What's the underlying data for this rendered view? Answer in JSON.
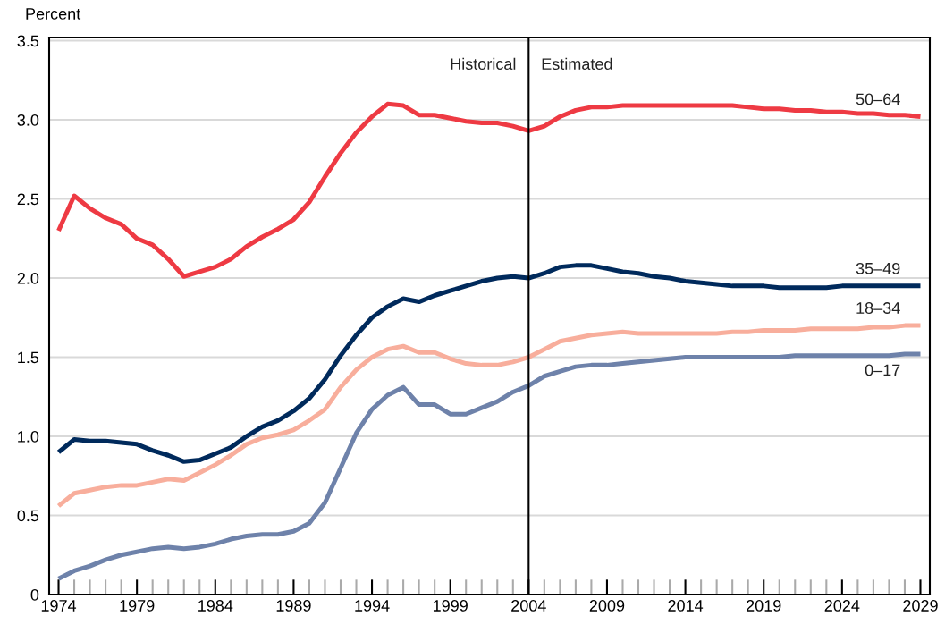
{
  "chart_data": {
    "type": "line",
    "ylabel": "Percent",
    "x": [
      1974,
      1975,
      1976,
      1977,
      1978,
      1979,
      1980,
      1981,
      1982,
      1983,
      1984,
      1985,
      1986,
      1987,
      1988,
      1989,
      1990,
      1991,
      1992,
      1993,
      1994,
      1995,
      1996,
      1997,
      1998,
      1999,
      2000,
      2001,
      2002,
      2003,
      2004,
      2005,
      2006,
      2007,
      2008,
      2009,
      2010,
      2011,
      2012,
      2013,
      2014,
      2015,
      2016,
      2017,
      2018,
      2019,
      2020,
      2021,
      2022,
      2023,
      2024,
      2025,
      2026,
      2027,
      2028,
      2029
    ],
    "series": [
      {
        "name": "50–64",
        "color": "#ee3a43",
        "values": [
          2.3,
          2.52,
          2.44,
          2.38,
          2.34,
          2.25,
          2.21,
          2.12,
          2.01,
          2.04,
          2.07,
          2.12,
          2.2,
          2.26,
          2.31,
          2.37,
          2.48,
          2.64,
          2.79,
          2.92,
          3.02,
          3.1,
          3.09,
          3.03,
          3.03,
          3.01,
          2.99,
          2.98,
          2.98,
          2.96,
          2.93,
          2.96,
          3.02,
          3.06,
          3.08,
          3.08,
          3.09,
          3.09,
          3.09,
          3.09,
          3.09,
          3.09,
          3.09,
          3.09,
          3.08,
          3.07,
          3.07,
          3.06,
          3.06,
          3.05,
          3.05,
          3.04,
          3.04,
          3.03,
          3.03,
          3.02
        ]
      },
      {
        "name": "35–49",
        "color": "#002a5c",
        "values": [
          0.9,
          0.98,
          0.97,
          0.97,
          0.96,
          0.95,
          0.91,
          0.88,
          0.84,
          0.85,
          0.89,
          0.93,
          1.0,
          1.06,
          1.1,
          1.16,
          1.24,
          1.36,
          1.51,
          1.64,
          1.75,
          1.82,
          1.87,
          1.85,
          1.89,
          1.92,
          1.95,
          1.98,
          2.0,
          2.01,
          2.0,
          2.03,
          2.07,
          2.08,
          2.08,
          2.06,
          2.04,
          2.03,
          2.01,
          2.0,
          1.98,
          1.97,
          1.96,
          1.95,
          1.95,
          1.95,
          1.94,
          1.94,
          1.94,
          1.94,
          1.95,
          1.95,
          1.95,
          1.95,
          1.95,
          1.95
        ]
      },
      {
        "name": "18–34",
        "color": "#f8ae9c",
        "values": [
          0.56,
          0.64,
          0.66,
          0.68,
          0.69,
          0.69,
          0.71,
          0.73,
          0.72,
          0.77,
          0.82,
          0.88,
          0.95,
          0.99,
          1.01,
          1.04,
          1.1,
          1.17,
          1.31,
          1.42,
          1.5,
          1.55,
          1.57,
          1.53,
          1.53,
          1.49,
          1.46,
          1.45,
          1.45,
          1.47,
          1.5,
          1.55,
          1.6,
          1.62,
          1.64,
          1.65,
          1.66,
          1.65,
          1.65,
          1.65,
          1.65,
          1.65,
          1.65,
          1.66,
          1.66,
          1.67,
          1.67,
          1.67,
          1.68,
          1.68,
          1.68,
          1.68,
          1.69,
          1.69,
          1.7,
          1.7
        ]
      },
      {
        "name": "0–17",
        "color": "#6e82aa",
        "values": [
          0.1,
          0.15,
          0.18,
          0.22,
          0.25,
          0.27,
          0.29,
          0.3,
          0.29,
          0.3,
          0.32,
          0.35,
          0.37,
          0.38,
          0.38,
          0.4,
          0.45,
          0.58,
          0.8,
          1.02,
          1.17,
          1.26,
          1.31,
          1.2,
          1.2,
          1.14,
          1.14,
          1.18,
          1.22,
          1.28,
          1.32,
          1.38,
          1.41,
          1.44,
          1.45,
          1.45,
          1.46,
          1.47,
          1.48,
          1.49,
          1.5,
          1.5,
          1.5,
          1.5,
          1.5,
          1.5,
          1.5,
          1.51,
          1.51,
          1.51,
          1.51,
          1.51,
          1.51,
          1.51,
          1.52,
          1.52
        ]
      }
    ],
    "xlim": [
      1973.4,
      2029.6
    ],
    "ylim": [
      0,
      3.52
    ],
    "xticks": [
      1974,
      1979,
      1984,
      1989,
      1994,
      1999,
      2004,
      2009,
      2014,
      2019,
      2024,
      2029
    ],
    "yticks": [
      0,
      {
        "value": 0.5,
        "label": "0.5"
      },
      {
        "value": 1.0,
        "label": "1.0"
      },
      {
        "value": 1.5,
        "label": "1.5"
      },
      {
        "value": 2.0,
        "label": "2.0"
      },
      {
        "value": 2.5,
        "label": "2.5"
      },
      {
        "value": 3.0,
        "label": "3.0"
      },
      {
        "value": 3.5,
        "label": "3.5"
      }
    ],
    "ref_lines": [
      {
        "axis": "x",
        "value": 2004,
        "color": "#000000"
      }
    ],
    "annotations": [
      "Historical",
      "Estimated"
    ],
    "grid": "y",
    "legend": false,
    "marker": "none",
    "line_style": "solid"
  }
}
